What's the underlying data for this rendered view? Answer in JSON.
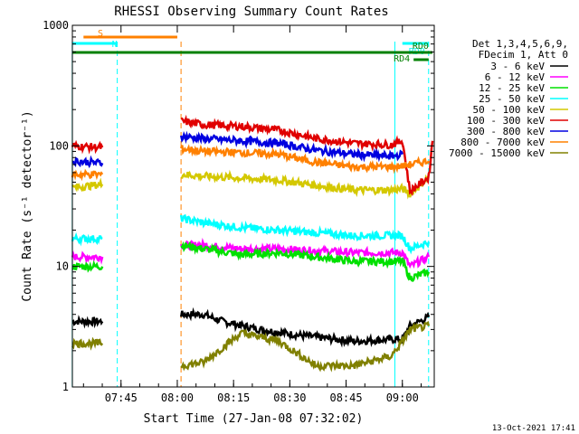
{
  "chart_data": {
    "type": "line",
    "title": "RHESSI Observing Summary Count Rates",
    "ylabel": "Count Rate (s⁻¹ detector⁻¹)",
    "xlabel": "Start Time (27-Jan-08 07:32:02)",
    "y_scale": "log",
    "ylim": [
      1,
      1000
    ],
    "xlim": [
      "07:32:02",
      "09:08:30"
    ],
    "x_ticks": [
      "07:45",
      "08:00",
      "08:15",
      "08:30",
      "08:45",
      "09:00"
    ],
    "y_ticks": [
      "1",
      "10",
      "100",
      "1000"
    ],
    "legend": {
      "position": "right",
      "header": [
        "Det 1,3,4,5,6,9,",
        "FDecim 1, Att 0"
      ],
      "entries": [
        {
          "label": "3 - 6 keV",
          "color": "#000000"
        },
        {
          "label": "6 - 12 keV",
          "color": "#ff00ff"
        },
        {
          "label": "12 - 25 keV",
          "color": "#00e000"
        },
        {
          "label": "25 - 50 keV",
          "color": "#00ffff"
        },
        {
          "label": "50 - 100 keV",
          "color": "#d4c800"
        },
        {
          "label": "100 - 300 keV",
          "color": "#e00000"
        },
        {
          "label": "300 - 800 keV",
          "color": "#0000e0"
        },
        {
          "label": "800 - 7000 keV",
          "color": "#ff8000"
        },
        {
          "label": "7000 - 15000 keV",
          "color": "#808000"
        }
      ]
    },
    "flag_bars": [
      {
        "label": "S",
        "color": "#ff8000",
        "start": "07:35",
        "end": "08:00"
      },
      {
        "label": "N",
        "color": "#00ffff",
        "start": "07:32",
        "end": "07:44"
      },
      {
        "label": "RD0",
        "color": "#00ffff",
        "start": "09:00",
        "end": "09:07"
      },
      {
        "label": "RD0",
        "color": "#008000",
        "start": "07:32",
        "end": "09:08"
      },
      {
        "label": "RD4",
        "color": "#008000",
        "start": "09:03",
        "end": "09:07"
      }
    ],
    "vertical_markers": [
      {
        "time": "07:32",
        "color": "#00ffff",
        "style": "solid"
      },
      {
        "time": "07:44",
        "color": "#00ffff",
        "style": "dashed"
      },
      {
        "time": "08:01",
        "color": "#ff8000",
        "style": "dashed"
      },
      {
        "time": "08:58",
        "color": "#00ffff",
        "style": "solid"
      },
      {
        "time": "09:07",
        "color": "#00ffff",
        "style": "dashed"
      }
    ],
    "series": [
      {
        "name": "3 - 6 keV",
        "color": "#000000",
        "segments": [
          [
            [
              0,
              3.5
            ],
            [
              8,
              3.5
            ]
          ],
          [
            [
              29,
              4.0
            ],
            [
              35,
              4.0
            ],
            [
              40,
              3.5
            ],
            [
              50,
              3.0
            ],
            [
              60,
              2.7
            ],
            [
              75,
              2.4
            ],
            [
              88,
              2.5
            ],
            [
              90,
              3.2
            ],
            [
              95,
              3.8
            ]
          ]
        ]
      },
      {
        "name": "6 - 12 keV",
        "color": "#ff00ff",
        "segments": [
          [
            [
              0,
              12
            ],
            [
              8,
              12
            ]
          ],
          [
            [
              29,
              15
            ],
            [
              35,
              15
            ],
            [
              45,
              14
            ],
            [
              55,
              14
            ],
            [
              65,
              13.5
            ],
            [
              75,
              13
            ],
            [
              85,
              13
            ],
            [
              88,
              13
            ],
            [
              90,
              10
            ],
            [
              95,
              12
            ]
          ]
        ]
      },
      {
        "name": "12 - 25 keV",
        "color": "#00e000",
        "segments": [
          [
            [
              0,
              10
            ],
            [
              8,
              10
            ]
          ],
          [
            [
              29,
              15
            ],
            [
              35,
              14
            ],
            [
              45,
              12.5
            ],
            [
              55,
              13
            ],
            [
              65,
              12
            ],
            [
              75,
              11
            ],
            [
              85,
              11
            ],
            [
              88,
              11
            ],
            [
              90,
              8
            ],
            [
              95,
              9
            ]
          ]
        ]
      },
      {
        "name": "25 - 50 keV",
        "color": "#00ffff",
        "segments": [
          [
            [
              0,
              17
            ],
            [
              8,
              17
            ]
          ],
          [
            [
              29,
              25
            ],
            [
              35,
              23
            ],
            [
              45,
              21
            ],
            [
              55,
              20
            ],
            [
              65,
              19
            ],
            [
              75,
              18
            ],
            [
              85,
              18
            ],
            [
              88,
              18
            ],
            [
              90,
              14
            ],
            [
              95,
              16
            ]
          ]
        ]
      },
      {
        "name": "50 - 100 keV",
        "color": "#d4c800",
        "segments": [
          [
            [
              0,
              45
            ],
            [
              8,
              48
            ]
          ],
          [
            [
              29,
              58
            ],
            [
              35,
              56
            ],
            [
              45,
              54
            ],
            [
              55,
              52
            ],
            [
              65,
              47
            ],
            [
              75,
              43
            ],
            [
              85,
              43
            ],
            [
              88,
              44
            ],
            [
              90,
              40
            ],
            [
              95,
              55
            ]
          ]
        ]
      },
      {
        "name": "100 - 300 keV",
        "color": "#e00000",
        "segments": [
          [
            [
              0,
              100
            ],
            [
              8,
              97
            ]
          ],
          [
            [
              29,
              160
            ],
            [
              35,
              150
            ],
            [
              45,
              145
            ],
            [
              55,
              135
            ],
            [
              65,
              115
            ],
            [
              75,
              105
            ],
            [
              85,
              102
            ],
            [
              88,
              110
            ],
            [
              90,
              42
            ],
            [
              95,
              55
            ],
            [
              96,
              110
            ]
          ]
        ]
      },
      {
        "name": "300 - 800 keV",
        "color": "#0000e0",
        "segments": [
          [
            [
              0,
              75
            ],
            [
              8,
              72
            ]
          ],
          [
            [
              29,
              120
            ],
            [
              35,
              115
            ],
            [
              45,
              110
            ],
            [
              55,
              105
            ],
            [
              65,
              92
            ],
            [
              75,
              85
            ],
            [
              85,
              82
            ],
            [
              88,
              85
            ]
          ]
        ]
      },
      {
        "name": "800 - 7000 keV",
        "color": "#ff8000",
        "segments": [
          [
            [
              0,
              58
            ],
            [
              8,
              58
            ]
          ],
          [
            [
              29,
              95
            ],
            [
              35,
              90
            ],
            [
              45,
              88
            ],
            [
              55,
              85
            ],
            [
              65,
              73
            ],
            [
              75,
              67
            ],
            [
              85,
              67
            ],
            [
              88,
              68
            ],
            [
              90,
              70
            ],
            [
              95,
              75
            ]
          ]
        ]
      },
      {
        "name": "7000 - 15000 keV",
        "color": "#808000",
        "segments": [
          [
            [
              0,
              2.3
            ],
            [
              8,
              2.3
            ]
          ],
          [
            [
              29,
              1.5
            ],
            [
              35,
              1.6
            ],
            [
              45,
              2.8
            ],
            [
              55,
              2.4
            ],
            [
              65,
              1.5
            ],
            [
              75,
              1.5
            ],
            [
              85,
              1.8
            ],
            [
              88,
              2.4
            ],
            [
              90,
              3.0
            ],
            [
              95,
              3.2
            ]
          ]
        ]
      }
    ]
  },
  "footer_timestamp": "13-Oct-2021 17:41"
}
